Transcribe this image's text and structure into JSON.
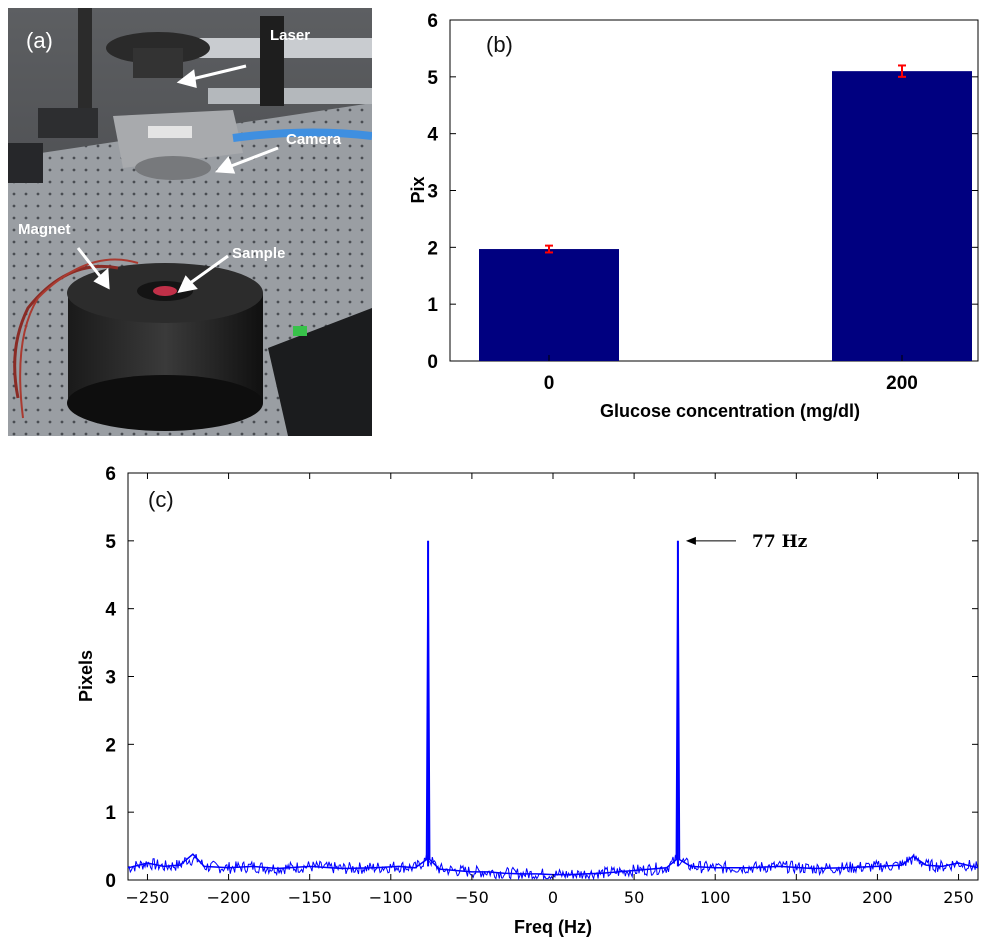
{
  "panel_a": {
    "letter": "(a)",
    "labels": {
      "laser": "Laser",
      "camera": "Camera",
      "magnet": "Magnet",
      "sample": "Sample"
    }
  },
  "chart_data": [
    {
      "panel": "(b)",
      "type": "bar",
      "categories": [
        "0",
        "200"
      ],
      "values": [
        1.97,
        5.1
      ],
      "errors": [
        0.06,
        0.1
      ],
      "xlabel": "Glucose concentration (mg/dl)",
      "ylabel": "Pix",
      "ylim": [
        0,
        6
      ],
      "yticks": [
        "0",
        "1",
        "2",
        "3",
        "4",
        "5",
        "6"
      ],
      "bar_color": "#000080",
      "error_color": "#ff0000",
      "grid": false
    },
    {
      "panel": "(c)",
      "type": "line",
      "xlabel": "Freq (Hz)",
      "ylabel": "Pixels",
      "xlim": [
        -262,
        262
      ],
      "ylim": [
        0,
        6
      ],
      "xticks": [
        "−250",
        "−200",
        "−150",
        "−100",
        "−50",
        "0",
        "50",
        "100",
        "150",
        "200",
        "250"
      ],
      "yticks": [
        "0",
        "1",
        "2",
        "3",
        "4",
        "5",
        "6"
      ],
      "series": [
        {
          "x": [
            -262,
            -250,
            -240,
            -230,
            -222,
            -215,
            -200,
            -185,
            -170,
            -150,
            -130,
            -110,
            -95,
            -85,
            -78,
            -77,
            -76,
            -70,
            -60,
            -50,
            -40,
            -30,
            -20,
            -10,
            0,
            10,
            20,
            30,
            40,
            50,
            60,
            70,
            76,
            77,
            78,
            85,
            100,
            120,
            140,
            160,
            180,
            200,
            215,
            222,
            230,
            240,
            250,
            262
          ],
          "y": [
            0.18,
            0.25,
            0.2,
            0.22,
            0.38,
            0.2,
            0.18,
            0.2,
            0.17,
            0.2,
            0.17,
            0.18,
            0.2,
            0.18,
            0.3,
            5.0,
            0.3,
            0.16,
            0.14,
            0.12,
            0.12,
            0.1,
            0.09,
            0.09,
            0.08,
            0.08,
            0.09,
            0.1,
            0.12,
            0.14,
            0.16,
            0.18,
            0.3,
            5.0,
            0.3,
            0.2,
            0.18,
            0.18,
            0.2,
            0.17,
            0.18,
            0.2,
            0.22,
            0.35,
            0.22,
            0.2,
            0.25,
            0.18
          ],
          "color": "#0000ff"
        }
      ],
      "annotations": [
        {
          "text": "77 Hz",
          "x": 77,
          "y": 5.0
        }
      ]
    }
  ]
}
